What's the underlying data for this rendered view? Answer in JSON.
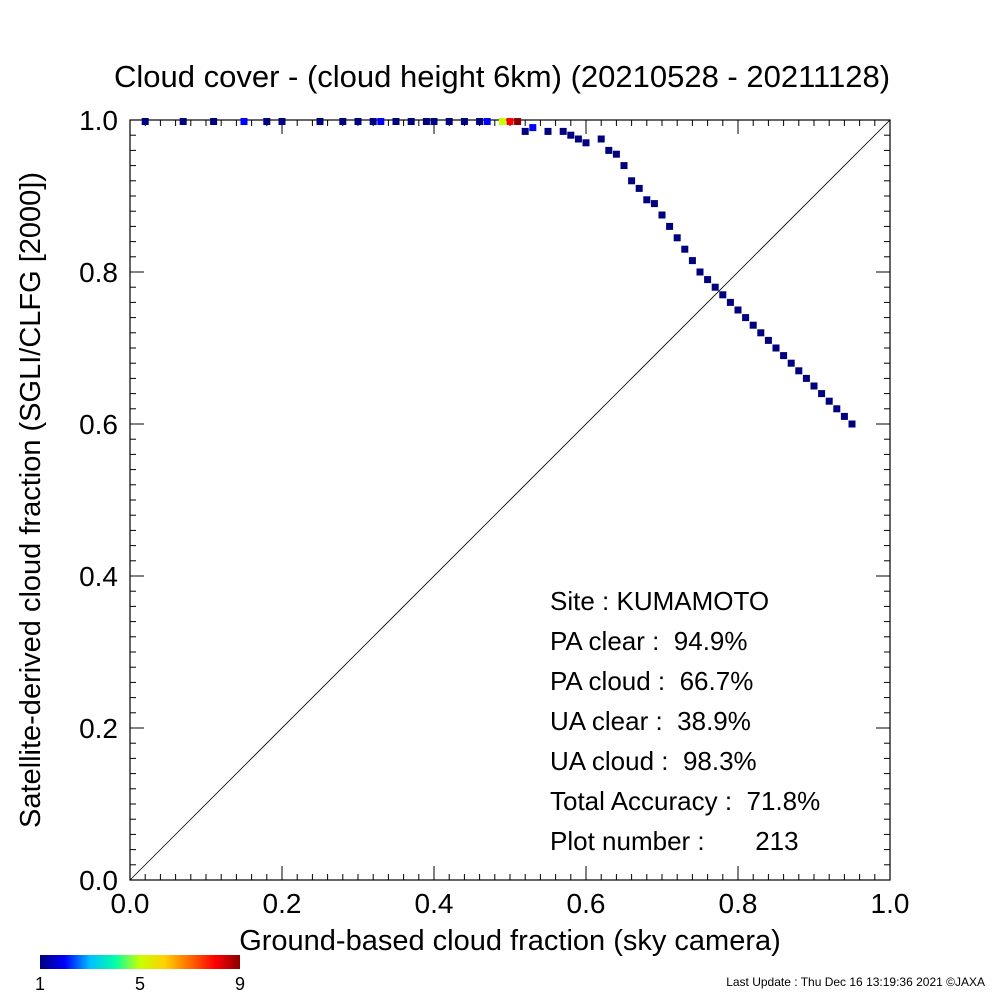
{
  "chart_data": {
    "type": "scatter",
    "title": "Cloud cover - (cloud height 6km)  (20210528 - 20211128)",
    "xlabel": "Ground-based cloud fraction (sky camera)",
    "ylabel": "Satellite-derived cloud fraction (SGLI/CLFG [2000])",
    "xlim": [
      0,
      1
    ],
    "ylim": [
      0,
      1
    ],
    "xticks": [
      "0.0",
      "0.2",
      "0.4",
      "0.6",
      "0.8",
      "1.0"
    ],
    "yticks": [
      "0.0",
      "0.2",
      "0.4",
      "0.6",
      "0.8",
      "1.0"
    ],
    "grid": false,
    "reference_line": "y = x",
    "colorbar": {
      "min": 1,
      "max": 9,
      "tick_labels": [
        "1",
        "5",
        "9"
      ],
      "colors": [
        "#00007f",
        "#0000ff",
        "#00bfff",
        "#00ffaa",
        "#c8ff00",
        "#ffd000",
        "#ff6a00",
        "#ff0000",
        "#8b0000"
      ]
    },
    "points": [
      [
        0.02,
        0.998,
        1
      ],
      [
        0.07,
        0.998,
        1
      ],
      [
        0.11,
        0.998,
        1
      ],
      [
        0.15,
        0.998,
        2
      ],
      [
        0.18,
        0.998,
        1
      ],
      [
        0.2,
        0.998,
        1
      ],
      [
        0.25,
        0.998,
        1
      ],
      [
        0.28,
        0.998,
        1
      ],
      [
        0.3,
        0.998,
        1
      ],
      [
        0.32,
        0.998,
        1
      ],
      [
        0.33,
        0.998,
        2
      ],
      [
        0.35,
        0.998,
        1
      ],
      [
        0.37,
        0.998,
        1
      ],
      [
        0.39,
        0.998,
        1
      ],
      [
        0.4,
        0.998,
        1
      ],
      [
        0.42,
        0.998,
        1
      ],
      [
        0.44,
        0.998,
        1
      ],
      [
        0.46,
        0.998,
        1
      ],
      [
        0.47,
        0.998,
        2
      ],
      [
        0.49,
        0.998,
        5
      ],
      [
        0.5,
        0.998,
        8
      ],
      [
        0.51,
        0.998,
        9
      ],
      [
        0.52,
        0.985,
        1
      ],
      [
        0.53,
        0.99,
        2
      ],
      [
        0.55,
        0.985,
        1
      ],
      [
        0.57,
        0.985,
        1
      ],
      [
        0.58,
        0.98,
        1
      ],
      [
        0.59,
        0.975,
        1
      ],
      [
        0.6,
        0.97,
        1
      ],
      [
        0.62,
        0.975,
        1
      ],
      [
        0.63,
        0.96,
        1
      ],
      [
        0.64,
        0.955,
        1
      ],
      [
        0.65,
        0.94,
        1
      ],
      [
        0.66,
        0.92,
        1
      ],
      [
        0.67,
        0.91,
        1
      ],
      [
        0.68,
        0.895,
        1
      ],
      [
        0.69,
        0.89,
        1
      ],
      [
        0.7,
        0.875,
        1
      ],
      [
        0.71,
        0.86,
        1
      ],
      [
        0.72,
        0.845,
        1
      ],
      [
        0.73,
        0.83,
        1
      ],
      [
        0.74,
        0.815,
        1
      ],
      [
        0.75,
        0.8,
        1
      ],
      [
        0.76,
        0.79,
        1
      ],
      [
        0.77,
        0.78,
        1
      ],
      [
        0.78,
        0.77,
        1
      ],
      [
        0.79,
        0.76,
        1
      ],
      [
        0.8,
        0.75,
        1
      ],
      [
        0.81,
        0.74,
        1
      ],
      [
        0.82,
        0.73,
        1
      ],
      [
        0.83,
        0.72,
        1
      ],
      [
        0.84,
        0.71,
        1
      ],
      [
        0.85,
        0.7,
        1
      ],
      [
        0.86,
        0.69,
        1
      ],
      [
        0.87,
        0.68,
        1
      ],
      [
        0.88,
        0.67,
        1
      ],
      [
        0.89,
        0.66,
        1
      ],
      [
        0.9,
        0.65,
        1
      ],
      [
        0.91,
        0.64,
        1
      ],
      [
        0.92,
        0.63,
        1
      ],
      [
        0.93,
        0.62,
        1
      ],
      [
        0.94,
        0.61,
        1
      ],
      [
        0.95,
        0.6,
        1
      ]
    ],
    "annotations": [
      "Site : KUMAMOTO",
      "PA clear :  94.9%",
      "PA cloud :  66.7%",
      "UA clear :  38.9%",
      "UA cloud :  98.3%",
      "Total Accuracy :  71.8%",
      "Plot number :       213"
    ]
  },
  "footer": {
    "last_update": "Last Update : Thu Dec 16 13:19:36 2021  ©JAXA"
  }
}
